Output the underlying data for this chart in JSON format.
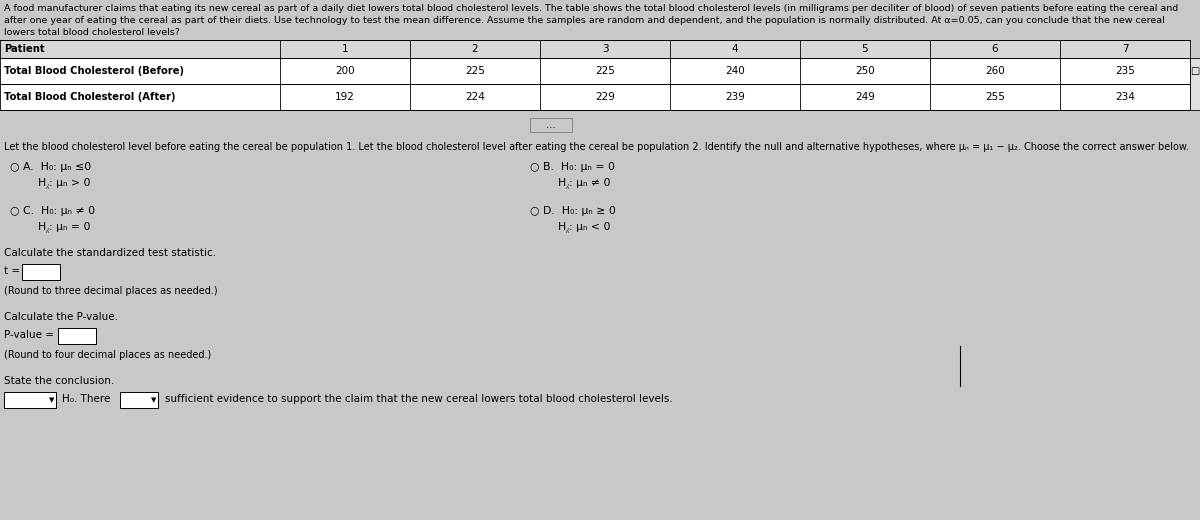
{
  "bg_color": "#c8c8c8",
  "header_line1": "A food manufacturer claims that eating its new cereal as part of a daily diet lowers total blood cholesterol levels. The table shows the total blood cholesterol levels (in milligrams per deciliter of blood) of seven patients before eating the cereal and",
  "header_line2": "after one year of eating the cereal as part of their diets. Use technology to test the mean difference. Assume the samples are random and dependent, and the population is normally distributed. At α=0.05, can you conclude that the new cereal",
  "header_line3": "lowers total blood cholesterol levels?",
  "table_col_headers": [
    "Patient",
    "1",
    "2",
    "3",
    "4",
    "5",
    "6",
    "7"
  ],
  "row1_label": "Total Blood Cholesterol (Before)",
  "row1_values": [
    "200",
    "225",
    "225",
    "240",
    "250",
    "260",
    "235"
  ],
  "row2_label": "Total Blood Cholesterol (After)",
  "row2_values": [
    "192",
    "224",
    "229",
    "239",
    "249",
    "255",
    "234"
  ],
  "intro_text": "Let the blood cholesterol level before eating the cereal be population 1. Let the blood cholesterol level after eating the cereal be population 2. Identify the null and alternative hypotheses, where μₙ = μ₁ − μ₂. Choose the correct answer below.",
  "optA_h0": "H₀: μₙ ≤0",
  "optA_ha": "H⁁: μₙ > 0",
  "optB_h0": "H₀: μₙ = 0",
  "optB_ha": "H⁁: μₙ ≠ 0",
  "optC_h0": "H₀: μₙ ≠ 0",
  "optC_ha": "H⁁: μₙ = 0",
  "optD_h0": "H₀: μₙ ≥ 0",
  "optD_ha": "H⁁: μₙ < 0",
  "calc_stat_label": "Calculate the standardized test statistic.",
  "t_label": "t =",
  "round3_note": "(Round to three decimal places as needed.)",
  "calc_pvalue_label": "Calculate the P-value.",
  "pvalue_label": "P-value =",
  "round4_note": "(Round to four decimal places as needed.)",
  "conclusion_label": "State the conclusion.",
  "ho_label": "H₀. There",
  "conclusion_text": "sufficient evidence to support the claim that the new cereal lowers total blood cholesterol levels.",
  "fs_header": 6.8,
  "fs_table_label": 7.2,
  "fs_table_val": 7.5,
  "fs_intro": 7.0,
  "fs_options": 7.8,
  "fs_body": 7.5
}
